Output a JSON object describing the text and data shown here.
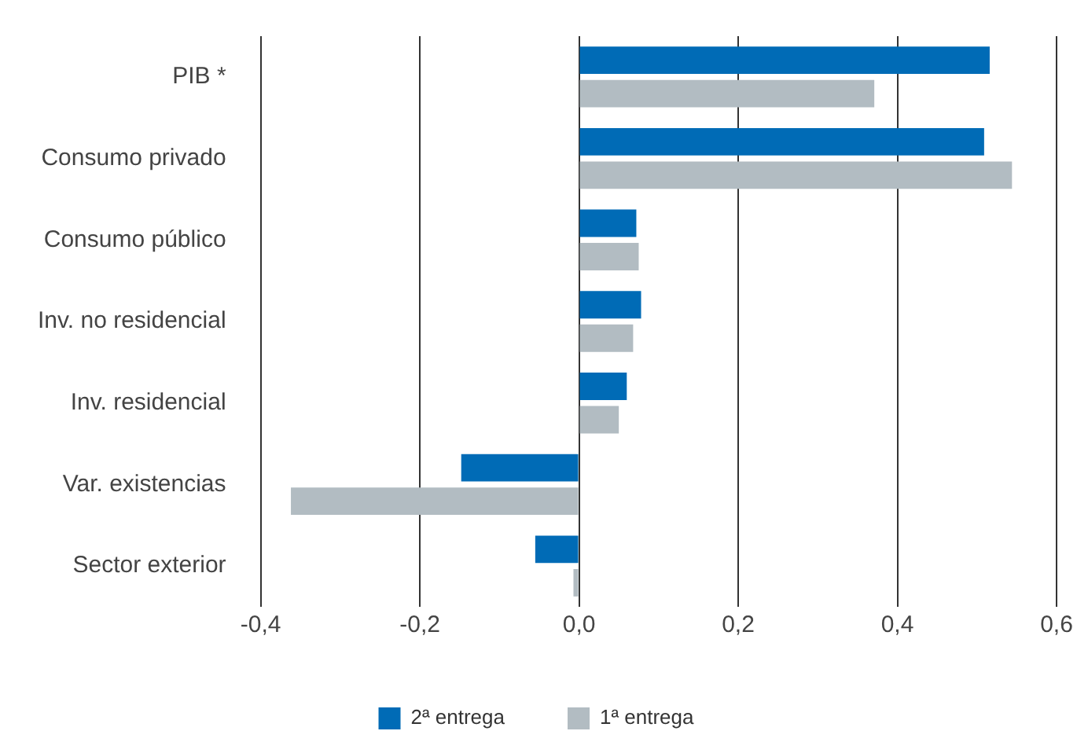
{
  "chart_data": {
    "type": "bar",
    "orientation": "horizontal",
    "categories": [
      "PIB *",
      "Consumo privado",
      "Consumo público",
      "Inv. no residencial",
      "Inv. residencial",
      "Var. existencias",
      "Sector exterior"
    ],
    "series": [
      {
        "name": "2ª entrega",
        "color": "#006bb6",
        "values": [
          0.516,
          0.509,
          0.072,
          0.078,
          0.06,
          -0.148,
          -0.055
        ]
      },
      {
        "name": "1ª entrega",
        "color": "#b2bcc2",
        "values": [
          0.371,
          0.544,
          0.075,
          0.068,
          0.05,
          -0.362,
          -0.007
        ]
      }
    ],
    "xlim": [
      -0.4,
      0.6
    ],
    "xticks": [
      {
        "value": -0.4,
        "label": "-0,4"
      },
      {
        "value": -0.2,
        "label": "-0,2"
      },
      {
        "value": 0,
        "label": "0,0"
      },
      {
        "value": 0.2,
        "label": "0,2"
      },
      {
        "value": 0.4,
        "label": "0,4"
      },
      {
        "value": 0.6,
        "label": "0,6"
      }
    ],
    "grid": "x",
    "legend": "bottom"
  }
}
